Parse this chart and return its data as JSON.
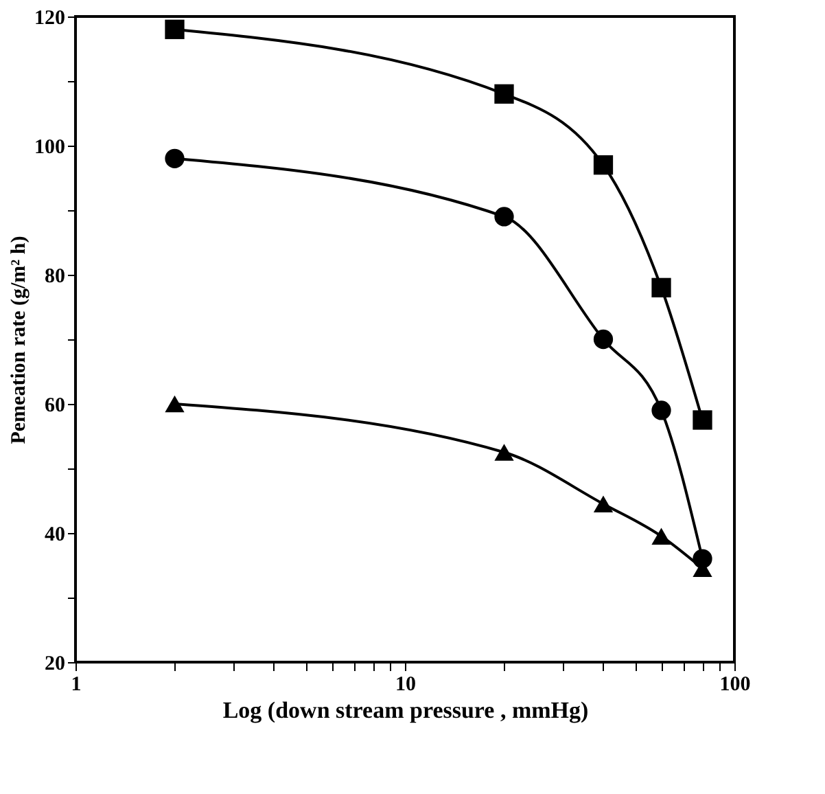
{
  "chart_data": {
    "type": "line",
    "xlabel": "Log (down stream pressure , mmHg)",
    "ylabel": "Pemeation rate (g/m² h)",
    "log": "x",
    "x": [
      2,
      20,
      40,
      60,
      80
    ],
    "xlim": [
      1,
      100
    ],
    "xticks": [
      1,
      {
        "value": 2,
        "label": null
      },
      {
        "value": 3,
        "label": null
      },
      {
        "value": 4,
        "label": null
      },
      {
        "value": 5,
        "label": null
      },
      {
        "value": 6,
        "label": null
      },
      {
        "value": 7,
        "label": null
      },
      {
        "value": 8,
        "label": null
      },
      {
        "value": 9,
        "label": null
      },
      10,
      {
        "value": 20,
        "label": null
      },
      {
        "value": 30,
        "label": null
      },
      {
        "value": 40,
        "label": null
      },
      {
        "value": 50,
        "label": null
      },
      {
        "value": 60,
        "label": null
      },
      {
        "value": 70,
        "label": null
      },
      {
        "value": 80,
        "label": null
      },
      {
        "value": 90,
        "label": null
      },
      100
    ],
    "ylim": [
      20,
      120
    ],
    "yticks": [
      20,
      {
        "value": 30,
        "label": null
      },
      40,
      {
        "value": 50,
        "label": null
      },
      60,
      {
        "value": 70,
        "label": null
      },
      80,
      {
        "value": 90,
        "label": null
      },
      100,
      {
        "value": 110,
        "label": null
      },
      120
    ],
    "grid": false,
    "line_style": "solid",
    "series": [
      {
        "color": "#000000",
        "marker": "square",
        "values": [
          118,
          108,
          97,
          78,
          57.5
        ]
      },
      {
        "color": "#000000",
        "marker": "circle",
        "values": [
          98,
          89,
          70,
          59,
          36
        ]
      },
      {
        "color": "#000000",
        "marker": "triangle",
        "values": [
          60,
          52.5,
          44.5,
          39.5,
          34.5
        ]
      }
    ]
  }
}
